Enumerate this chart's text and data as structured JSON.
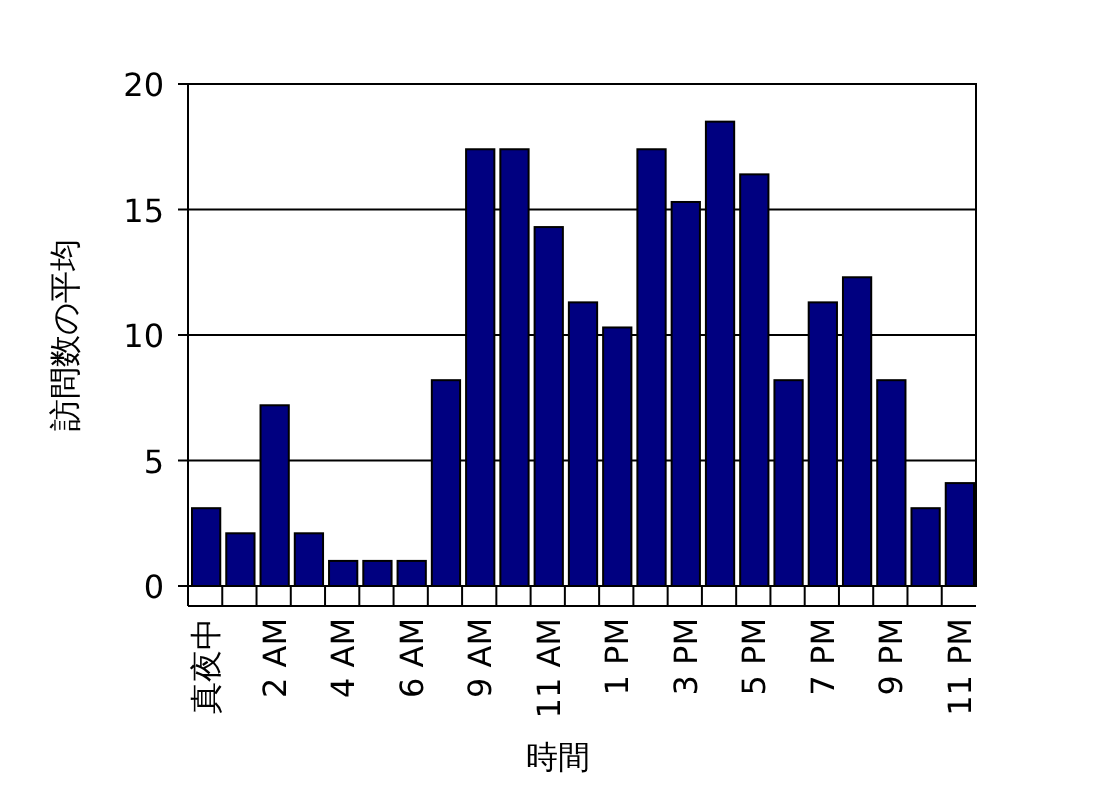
{
  "chart_data": {
    "type": "bar",
    "xlabel": "時間",
    "ylabel": "訪問数の平均",
    "categories": [
      "真夜中",
      null,
      "2 AM",
      null,
      "4 AM",
      null,
      "6 AM",
      null,
      "9 AM",
      null,
      "11 AM",
      null,
      "1 PM",
      null,
      "3 PM",
      null,
      "5 PM",
      null,
      "7 PM",
      null,
      "9 PM",
      null,
      "11 PM"
    ],
    "values": [
      3.1,
      2.1,
      7.2,
      2.1,
      1,
      1,
      1,
      8.2,
      17.4,
      17.4,
      14.3,
      11.3,
      10.3,
      17.4,
      15.3,
      18.5,
      16.4,
      8.2,
      11.3,
      12.3,
      8.2,
      3.1,
      4.1
    ],
    "color": "#000080",
    "ylim": [
      0,
      20
    ],
    "yticks": [
      0,
      5,
      10,
      15,
      20
    ],
    "grid": "y"
  }
}
